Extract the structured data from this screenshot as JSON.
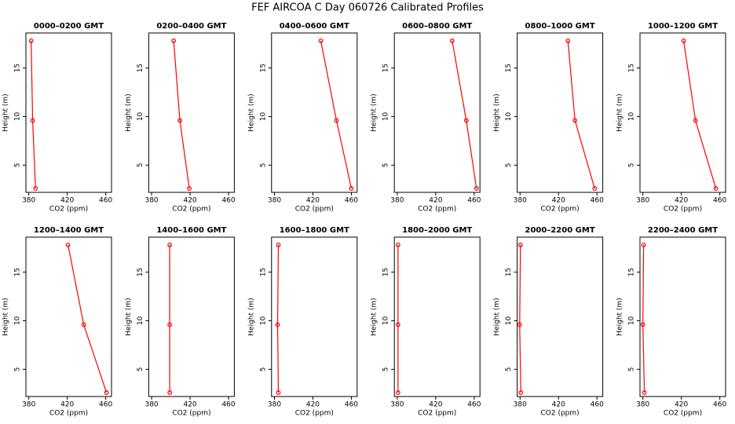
{
  "title": "FEF AIRCOA C  Day 060726  Calibrated Profiles",
  "chart_data": [
    {
      "type": "line",
      "title": "0000–0200 GMT",
      "xlabel": "CO2 (ppm)",
      "ylabel": "Height (m)",
      "x": [
        387,
        384,
        382.4
      ],
      "values": [
        2.6,
        9.6,
        17.8
      ],
      "color": "#ff0000",
      "xlim": [
        377,
        466
      ],
      "ylim": [
        2.2,
        18.6
      ],
      "xticks": [
        380,
        420,
        460
      ],
      "yticks": [
        5,
        10,
        15
      ]
    },
    {
      "type": "line",
      "title": "0200–0400 GMT",
      "xlabel": "CO2 (ppm)",
      "ylabel": "Height (m)",
      "x": [
        419.2,
        409.4,
        402.9
      ],
      "values": [
        2.6,
        9.6,
        17.8
      ],
      "color": "#ff0000",
      "xlim": [
        377,
        466
      ],
      "ylim": [
        2.2,
        18.6
      ],
      "xticks": [
        380,
        420,
        460
      ],
      "yticks": [
        5,
        10,
        15
      ]
    },
    {
      "type": "line",
      "title": "0400–0600 GMT",
      "xlabel": "CO2 (ppm)",
      "ylabel": "Height (m)",
      "x": [
        460,
        444.5,
        428.2
      ],
      "values": [
        2.6,
        9.6,
        17.8
      ],
      "color": "#ff0000",
      "xlim": [
        377,
        466
      ],
      "ylim": [
        2.2,
        18.6
      ],
      "xticks": [
        380,
        420,
        460
      ],
      "yticks": [
        5,
        10,
        15
      ]
    },
    {
      "type": "line",
      "title": "0600–0800 GMT",
      "xlabel": "CO2 (ppm)",
      "ylabel": "Height (m)",
      "x": [
        462.4,
        451.8,
        437.1
      ],
      "values": [
        2.6,
        9.6,
        17.8
      ],
      "color": "#ff0000",
      "xlim": [
        377,
        466
      ],
      "ylim": [
        2.2,
        18.6
      ],
      "xticks": [
        380,
        420,
        460
      ],
      "yticks": [
        5,
        10,
        15
      ]
    },
    {
      "type": "line",
      "title": "0800–1000 GMT",
      "xlabel": "CO2 (ppm)",
      "ylabel": "Height (m)",
      "x": [
        457.6,
        437.1,
        429.8
      ],
      "values": [
        2.6,
        9.6,
        17.8
      ],
      "color": "#ff0000",
      "xlim": [
        377,
        466
      ],
      "ylim": [
        2.2,
        18.6
      ],
      "xticks": [
        380,
        420,
        460
      ],
      "yticks": [
        5,
        10,
        15
      ]
    },
    {
      "type": "line",
      "title": "1000–1200 GMT",
      "xlabel": "CO2 (ppm)",
      "ylabel": "Height (m)",
      "x": [
        455.9,
        434.7,
        422.4
      ],
      "values": [
        2.6,
        9.6,
        17.8
      ],
      "color": "#ff0000",
      "xlim": [
        377,
        466
      ],
      "ylim": [
        2.2,
        18.6
      ],
      "xticks": [
        380,
        420,
        460
      ],
      "yticks": [
        5,
        10,
        15
      ]
    },
    {
      "type": "line",
      "title": "1200–1400 GMT",
      "xlabel": "CO2 (ppm)",
      "ylabel": "Height (m)",
      "x": [
        460.8,
        437.1,
        420.8
      ],
      "values": [
        2.6,
        9.6,
        17.8
      ],
      "color": "#ff0000",
      "xlim": [
        377,
        466
      ],
      "ylim": [
        2.2,
        18.6
      ],
      "xticks": [
        380,
        420,
        460
      ],
      "yticks": [
        5,
        10,
        15
      ]
    },
    {
      "type": "line",
      "title": "1400–1600 GMT",
      "xlabel": "CO2 (ppm)",
      "ylabel": "Height (m)",
      "x": [
        398.8,
        398.8,
        398.8
      ],
      "values": [
        2.6,
        9.6,
        17.8
      ],
      "color": "#ff0000",
      "xlim": [
        377,
        466
      ],
      "ylim": [
        2.2,
        18.6
      ],
      "xticks": [
        380,
        420,
        460
      ],
      "yticks": [
        5,
        10,
        15
      ]
    },
    {
      "type": "line",
      "title": "1600–1800 GMT",
      "xlabel": "CO2 (ppm)",
      "ylabel": "Height (m)",
      "x": [
        384.1,
        383.3,
        384.1
      ],
      "values": [
        2.6,
        9.6,
        17.8
      ],
      "color": "#ff0000",
      "xlim": [
        377,
        466
      ],
      "ylim": [
        2.2,
        18.6
      ],
      "xticks": [
        380,
        420,
        460
      ],
      "yticks": [
        5,
        10,
        15
      ]
    },
    {
      "type": "line",
      "title": "1800–2000 GMT",
      "xlabel": "CO2 (ppm)",
      "ylabel": "Height (m)",
      "x": [
        380.8,
        380.8,
        380.8
      ],
      "values": [
        2.6,
        9.6,
        17.8
      ],
      "color": "#ff0000",
      "xlim": [
        377,
        466
      ],
      "ylim": [
        2.2,
        18.6
      ],
      "xticks": [
        380,
        420,
        460
      ],
      "yticks": [
        5,
        10,
        15
      ]
    },
    {
      "type": "line",
      "title": "2000–2200 GMT",
      "xlabel": "CO2 (ppm)",
      "ylabel": "Height (m)",
      "x": [
        380.8,
        379.6,
        380.4
      ],
      "values": [
        2.6,
        9.6,
        17.8
      ],
      "color": "#ff0000",
      "xlim": [
        377,
        466
      ],
      "ylim": [
        2.2,
        18.6
      ],
      "xticks": [
        380,
        420,
        460
      ],
      "yticks": [
        5,
        10,
        15
      ]
    },
    {
      "type": "line",
      "title": "2200–2400 GMT",
      "xlabel": "CO2 (ppm)",
      "ylabel": "Height (m)",
      "x": [
        381.6,
        380,
        380.8
      ],
      "values": [
        2.6,
        9.6,
        17.8
      ],
      "color": "#ff0000",
      "xlim": [
        377,
        466
      ],
      "ylim": [
        2.2,
        18.6
      ],
      "xticks": [
        380,
        420,
        460
      ],
      "yticks": [
        5,
        10,
        15
      ]
    }
  ]
}
